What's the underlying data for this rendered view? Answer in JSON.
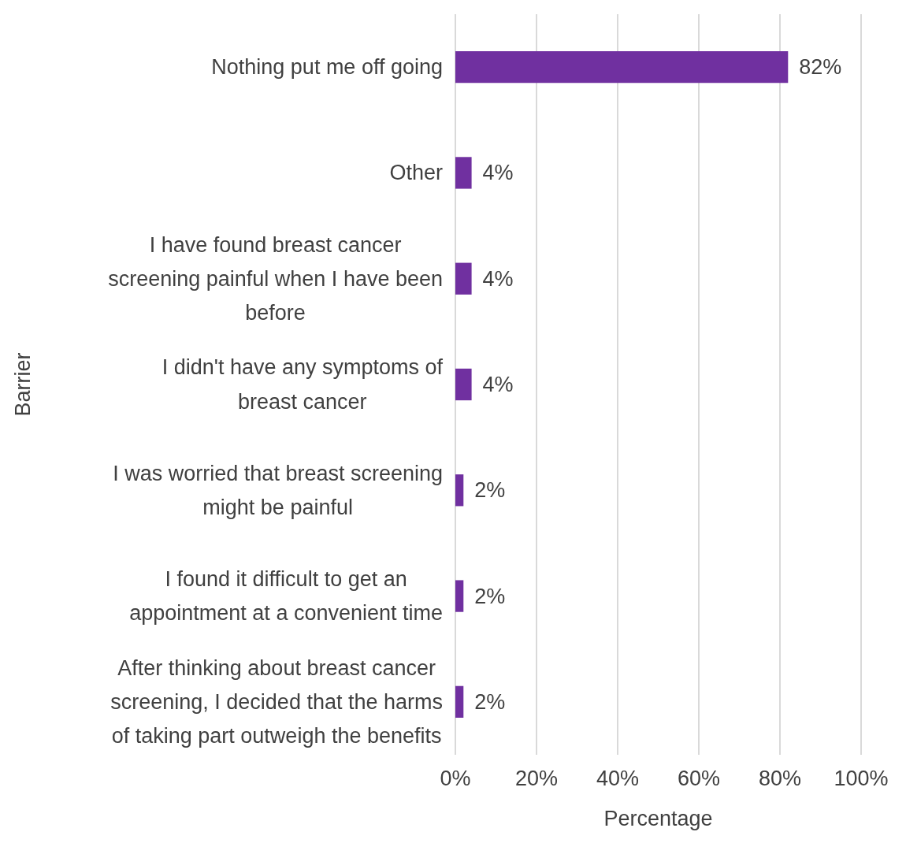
{
  "chart_data": {
    "type": "bar",
    "orientation": "horizontal",
    "xlabel": "Percentage",
    "ylabel": "Barrier",
    "categories": [
      "Nothing put me off going",
      "Other",
      "I have found breast cancer screening painful when I have been before",
      "I didn't have any symptoms of breast cancer",
      "I was worried that breast screening might be painful",
      "I found it difficult to get an appointment at a convenient time",
      "After thinking about breast cancer screening, I decided that the harms of taking part outweigh the benefits"
    ],
    "values": [
      82,
      4,
      4,
      4,
      2,
      2,
      2
    ],
    "value_labels": [
      "82%",
      "4%",
      "4%",
      "4%",
      "2%",
      "2%",
      "2%"
    ],
    "color": "#7030a0",
    "xlim": [
      0,
      100
    ],
    "xticks": [
      {
        "value": 0,
        "label": "0%"
      },
      {
        "value": 20,
        "label": "20%"
      },
      {
        "value": 40,
        "label": "40%"
      },
      {
        "value": 60,
        "label": "60%"
      },
      {
        "value": 80,
        "label": "80%"
      },
      {
        "value": 100,
        "label": "100%"
      }
    ],
    "grid": "x",
    "legend": false
  }
}
